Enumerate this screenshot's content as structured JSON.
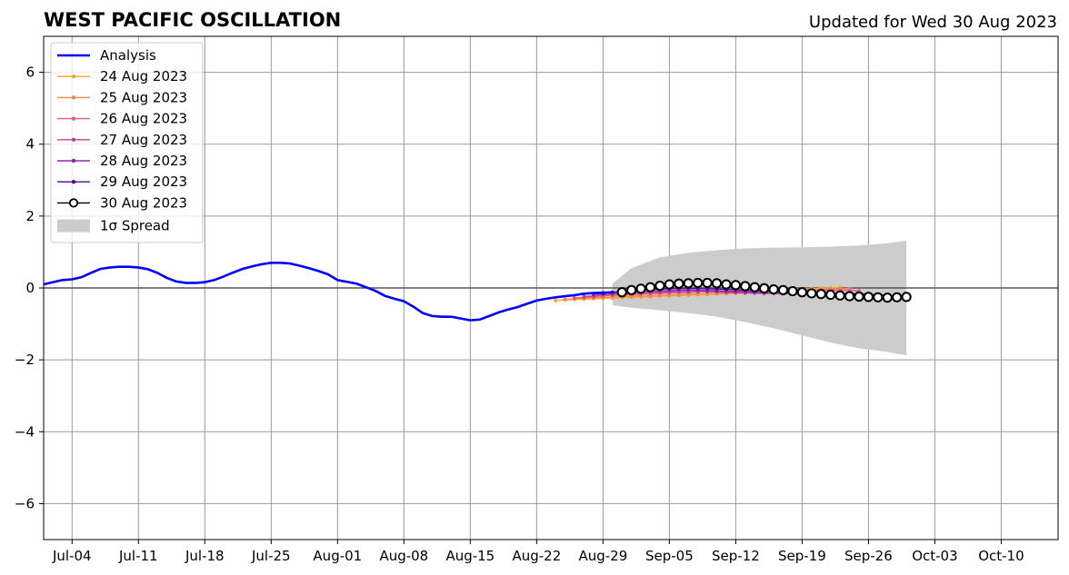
{
  "header": {
    "title": "WEST PACIFIC OSCILLATION",
    "updated": "Updated for Wed 30 Aug 2023"
  },
  "legend": {
    "placement": "top-left",
    "spread_label": "1σ Spread"
  },
  "colors": {
    "analysis": "#0000ff",
    "spread": "#cccccc",
    "grid": "#999999",
    "zero_line": "#555555",
    "fc_30_marker_fill": "#ffffff",
    "fc_30_marker_edge": "#000000"
  },
  "chart_data": {
    "type": "line",
    "title": "WEST PACIFIC OSCILLATION",
    "xlabel": "",
    "ylabel": "",
    "xlim": [
      "2023-07-01",
      "2023-10-16"
    ],
    "ylim": [
      -7,
      7
    ],
    "grid": true,
    "yticks": [
      -6,
      -4,
      -2,
      0,
      2,
      4,
      6
    ],
    "ytick_labels": [
      "−6",
      "−4",
      "−2",
      "0",
      "2",
      "4",
      "6"
    ],
    "xticks": [
      "2023-07-04",
      "2023-07-11",
      "2023-07-18",
      "2023-07-25",
      "2023-08-01",
      "2023-08-08",
      "2023-08-15",
      "2023-08-22",
      "2023-08-29",
      "2023-09-05",
      "2023-09-12",
      "2023-09-19",
      "2023-09-26",
      "2023-10-03",
      "2023-10-10"
    ],
    "xtick_labels": [
      "Jul-04",
      "Jul-11",
      "Jul-18",
      "Jul-25",
      "Aug-01",
      "Aug-08",
      "Aug-15",
      "Aug-22",
      "Aug-29",
      "Sep-05",
      "Sep-12",
      "Sep-19",
      "Sep-26",
      "Oct-03",
      "Oct-10"
    ],
    "analysis": {
      "name": "Analysis",
      "color": "#0000ff",
      "x": [
        "2023-07-01",
        "2023-07-02",
        "2023-07-03",
        "2023-07-04",
        "2023-07-05",
        "2023-07-06",
        "2023-07-07",
        "2023-07-08",
        "2023-07-09",
        "2023-07-10",
        "2023-07-11",
        "2023-07-12",
        "2023-07-13",
        "2023-07-14",
        "2023-07-15",
        "2023-07-16",
        "2023-07-17",
        "2023-07-18",
        "2023-07-19",
        "2023-07-20",
        "2023-07-21",
        "2023-07-22",
        "2023-07-23",
        "2023-07-24",
        "2023-07-25",
        "2023-07-26",
        "2023-07-27",
        "2023-07-28",
        "2023-07-29",
        "2023-07-30",
        "2023-07-31",
        "2023-08-01",
        "2023-08-02",
        "2023-08-03",
        "2023-08-04",
        "2023-08-05",
        "2023-08-06",
        "2023-08-07",
        "2023-08-08",
        "2023-08-09",
        "2023-08-10",
        "2023-08-11",
        "2023-08-12",
        "2023-08-13",
        "2023-08-14",
        "2023-08-15",
        "2023-08-16",
        "2023-08-17",
        "2023-08-18",
        "2023-08-19",
        "2023-08-20",
        "2023-08-21",
        "2023-08-22",
        "2023-08-23",
        "2023-08-24",
        "2023-08-25",
        "2023-08-26",
        "2023-08-27",
        "2023-08-28",
        "2023-08-29",
        "2023-08-30"
      ],
      "y": [
        0.1,
        0.16,
        0.22,
        0.24,
        0.3,
        0.42,
        0.53,
        0.57,
        0.59,
        0.59,
        0.57,
        0.52,
        0.42,
        0.28,
        0.18,
        0.14,
        0.14,
        0.16,
        0.22,
        0.32,
        0.43,
        0.53,
        0.6,
        0.66,
        0.7,
        0.7,
        0.68,
        0.62,
        0.55,
        0.47,
        0.38,
        0.22,
        0.17,
        0.12,
        0.02,
        -0.08,
        -0.22,
        -0.3,
        -0.37,
        -0.52,
        -0.7,
        -0.78,
        -0.8,
        -0.8,
        -0.85,
        -0.9,
        -0.88,
        -0.78,
        -0.68,
        -0.6,
        -0.53,
        -0.44,
        -0.35,
        -0.3,
        -0.26,
        -0.23,
        -0.2,
        -0.16,
        -0.14,
        -0.13,
        -0.12
      ]
    },
    "spread": {
      "name": "1σ Spread",
      "x": [
        "2023-08-30",
        "2023-09-01",
        "2023-09-04",
        "2023-09-07",
        "2023-09-10",
        "2023-09-13",
        "2023-09-16",
        "2023-09-19",
        "2023-09-22",
        "2023-09-25",
        "2023-09-28",
        "2023-09-30"
      ],
      "upper": [
        0.12,
        0.55,
        0.85,
        0.98,
        1.05,
        1.1,
        1.12,
        1.13,
        1.15,
        1.18,
        1.24,
        1.32
      ],
      "lower": [
        -0.48,
        -0.55,
        -0.62,
        -0.7,
        -0.8,
        -0.95,
        -1.12,
        -1.32,
        -1.52,
        -1.68,
        -1.78,
        -1.88
      ]
    },
    "series": [
      {
        "name": "24 Aug 2023",
        "color": "#ffa726",
        "x": [
          "2023-08-24",
          "2023-08-25",
          "2023-08-26",
          "2023-08-27",
          "2023-08-28",
          "2023-08-29",
          "2023-08-30",
          "2023-08-31",
          "2023-09-01",
          "2023-09-02",
          "2023-09-03",
          "2023-09-04",
          "2023-09-05",
          "2023-09-06",
          "2023-09-07",
          "2023-09-08",
          "2023-09-09",
          "2023-09-10",
          "2023-09-11",
          "2023-09-12",
          "2023-09-13",
          "2023-09-14",
          "2023-09-15",
          "2023-09-16",
          "2023-09-17",
          "2023-09-18",
          "2023-09-19",
          "2023-09-20",
          "2023-09-21",
          "2023-09-22",
          "2023-09-23"
        ],
        "y": [
          -0.35,
          -0.33,
          -0.32,
          -0.31,
          -0.3,
          -0.29,
          -0.28,
          -0.27,
          -0.26,
          -0.25,
          -0.24,
          -0.23,
          -0.22,
          -0.21,
          -0.2,
          -0.19,
          -0.18,
          -0.17,
          -0.16,
          -0.15,
          -0.14,
          -0.12,
          -0.1,
          -0.08,
          -0.06,
          -0.04,
          -0.03,
          -0.02,
          -0.01,
          0.0,
          0.01
        ]
      },
      {
        "name": "25 Aug 2023",
        "color": "#f5874f",
        "x": [
          "2023-08-25",
          "2023-08-26",
          "2023-08-27",
          "2023-08-28",
          "2023-08-29",
          "2023-08-30",
          "2023-08-31",
          "2023-09-01",
          "2023-09-02",
          "2023-09-03",
          "2023-09-04",
          "2023-09-05",
          "2023-09-06",
          "2023-09-07",
          "2023-09-08",
          "2023-09-09",
          "2023-09-10",
          "2023-09-11",
          "2023-09-12",
          "2023-09-13",
          "2023-09-14",
          "2023-09-15",
          "2023-09-16",
          "2023-09-17",
          "2023-09-18",
          "2023-09-19",
          "2023-09-20",
          "2023-09-21",
          "2023-09-22",
          "2023-09-23",
          "2023-09-24"
        ],
        "y": [
          -0.32,
          -0.3,
          -0.28,
          -0.27,
          -0.26,
          -0.25,
          -0.24,
          -0.23,
          -0.22,
          -0.22,
          -0.21,
          -0.2,
          -0.19,
          -0.18,
          -0.17,
          -0.16,
          -0.15,
          -0.14,
          -0.13,
          -0.12,
          -0.11,
          -0.1,
          -0.09,
          -0.08,
          -0.07,
          -0.06,
          -0.05,
          -0.04,
          -0.03,
          -0.02,
          -0.02
        ]
      },
      {
        "name": "26 Aug 2023",
        "color": "#e0607e",
        "x": [
          "2023-08-26",
          "2023-08-27",
          "2023-08-28",
          "2023-08-29",
          "2023-08-30",
          "2023-08-31",
          "2023-09-01",
          "2023-09-02",
          "2023-09-03",
          "2023-09-04",
          "2023-09-05",
          "2023-09-06",
          "2023-09-07",
          "2023-09-08",
          "2023-09-09",
          "2023-09-10",
          "2023-09-11",
          "2023-09-12",
          "2023-09-13",
          "2023-09-14",
          "2023-09-15",
          "2023-09-16",
          "2023-09-17",
          "2023-09-18",
          "2023-09-19",
          "2023-09-20",
          "2023-09-21",
          "2023-09-22",
          "2023-09-23",
          "2023-09-24",
          "2023-09-25"
        ],
        "y": [
          -0.28,
          -0.26,
          -0.24,
          -0.22,
          -0.2,
          -0.19,
          -0.18,
          -0.17,
          -0.16,
          -0.15,
          -0.14,
          -0.13,
          -0.12,
          -0.11,
          -0.1,
          -0.1,
          -0.09,
          -0.09,
          -0.08,
          -0.08,
          -0.08,
          -0.07,
          -0.07,
          -0.07,
          -0.07,
          -0.07,
          -0.06,
          -0.06,
          -0.06,
          -0.07,
          -0.08
        ]
      },
      {
        "name": "27 Aug 2023",
        "color": "#c2449a",
        "x": [
          "2023-08-27",
          "2023-08-28",
          "2023-08-29",
          "2023-08-30",
          "2023-08-31",
          "2023-09-01",
          "2023-09-02",
          "2023-09-03",
          "2023-09-04",
          "2023-09-05",
          "2023-09-06",
          "2023-09-07",
          "2023-09-08",
          "2023-09-09",
          "2023-09-10",
          "2023-09-11",
          "2023-09-12",
          "2023-09-13",
          "2023-09-14",
          "2023-09-15",
          "2023-09-16",
          "2023-09-17",
          "2023-09-18",
          "2023-09-19",
          "2023-09-20",
          "2023-09-21",
          "2023-09-22",
          "2023-09-23",
          "2023-09-24",
          "2023-09-25",
          "2023-09-26"
        ],
        "y": [
          -0.24,
          -0.22,
          -0.2,
          -0.18,
          -0.16,
          -0.15,
          -0.14,
          -0.13,
          -0.12,
          -0.11,
          -0.1,
          -0.1,
          -0.1,
          -0.1,
          -0.11,
          -0.12,
          -0.13,
          -0.14,
          -0.14,
          -0.15,
          -0.15,
          -0.16,
          -0.16,
          -0.16,
          -0.16,
          -0.16,
          -0.16,
          -0.16,
          -0.16,
          -0.16,
          -0.17
        ]
      },
      {
        "name": "28 Aug 2023",
        "color": "#8e26b0",
        "x": [
          "2023-08-28",
          "2023-08-29",
          "2023-08-30",
          "2023-08-31",
          "2023-09-01",
          "2023-09-02",
          "2023-09-03",
          "2023-09-04",
          "2023-09-05",
          "2023-09-06",
          "2023-09-07",
          "2023-09-08",
          "2023-09-09",
          "2023-09-10",
          "2023-09-11",
          "2023-09-12",
          "2023-09-13",
          "2023-09-14",
          "2023-09-15",
          "2023-09-16",
          "2023-09-17",
          "2023-09-18",
          "2023-09-19",
          "2023-09-20",
          "2023-09-21",
          "2023-09-22",
          "2023-09-23",
          "2023-09-24",
          "2023-09-25",
          "2023-09-26",
          "2023-09-27"
        ],
        "y": [
          -0.18,
          -0.16,
          -0.14,
          -0.12,
          -0.11,
          -0.1,
          -0.09,
          -0.08,
          -0.07,
          -0.06,
          -0.06,
          -0.06,
          -0.07,
          -0.08,
          -0.09,
          -0.1,
          -0.11,
          -0.12,
          -0.13,
          -0.14,
          -0.15,
          -0.16,
          -0.17,
          -0.18,
          -0.19,
          -0.2,
          -0.2,
          -0.21,
          -0.21,
          -0.21,
          -0.22
        ]
      },
      {
        "name": "29 Aug 2023",
        "color": "#4b0f91",
        "x": [
          "2023-08-29",
          "2023-08-30",
          "2023-08-31",
          "2023-09-01",
          "2023-09-02",
          "2023-09-03",
          "2023-09-04",
          "2023-09-05",
          "2023-09-06",
          "2023-09-07",
          "2023-09-08",
          "2023-09-09",
          "2023-09-10",
          "2023-09-11",
          "2023-09-12",
          "2023-09-13",
          "2023-09-14",
          "2023-09-15",
          "2023-09-16",
          "2023-09-17",
          "2023-09-18",
          "2023-09-19",
          "2023-09-20",
          "2023-09-21",
          "2023-09-22",
          "2023-09-23",
          "2023-09-24",
          "2023-09-25",
          "2023-09-26",
          "2023-09-27",
          "2023-09-28"
        ],
        "y": [
          -0.14,
          -0.12,
          -0.1,
          -0.08,
          -0.06,
          -0.04,
          -0.03,
          -0.02,
          -0.01,
          -0.01,
          -0.01,
          -0.02,
          -0.03,
          -0.04,
          -0.05,
          -0.06,
          -0.07,
          -0.08,
          -0.09,
          -0.1,
          -0.11,
          -0.12,
          -0.13,
          -0.14,
          -0.15,
          -0.16,
          -0.17,
          -0.18,
          -0.18,
          -0.19,
          -0.2
        ]
      },
      {
        "name": "30 Aug 2023",
        "color": "#000000",
        "x": [
          "2023-08-31",
          "2023-09-01",
          "2023-09-02",
          "2023-09-03",
          "2023-09-04",
          "2023-09-05",
          "2023-09-06",
          "2023-09-07",
          "2023-09-08",
          "2023-09-09",
          "2023-09-10",
          "2023-09-11",
          "2023-09-12",
          "2023-09-13",
          "2023-09-14",
          "2023-09-15",
          "2023-09-16",
          "2023-09-17",
          "2023-09-18",
          "2023-09-19",
          "2023-09-20",
          "2023-09-21",
          "2023-09-22",
          "2023-09-23",
          "2023-09-24",
          "2023-09-25",
          "2023-09-26",
          "2023-09-27",
          "2023-09-28",
          "2023-09-29",
          "2023-09-30"
        ],
        "y": [
          -0.12,
          -0.06,
          -0.02,
          0.02,
          0.06,
          0.1,
          0.12,
          0.13,
          0.14,
          0.14,
          0.13,
          0.1,
          0.08,
          0.05,
          0.02,
          -0.01,
          -0.04,
          -0.06,
          -0.09,
          -0.12,
          -0.15,
          -0.17,
          -0.19,
          -0.21,
          -0.23,
          -0.24,
          -0.25,
          -0.26,
          -0.27,
          -0.26,
          -0.25
        ]
      }
    ]
  }
}
